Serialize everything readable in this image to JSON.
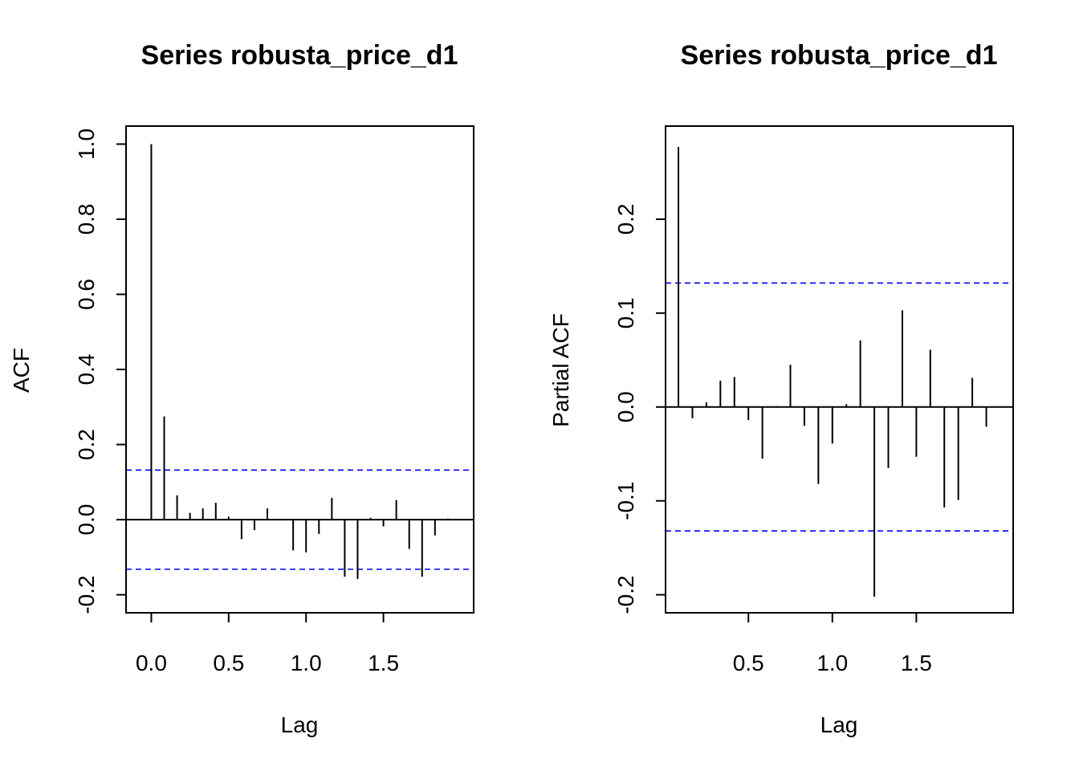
{
  "chart_data": [
    {
      "type": "bar",
      "title": "Series  robusta_price_d1",
      "xlabel": "Lag",
      "ylabel": "ACF",
      "xlim": [
        -0.08,
        2.0
      ],
      "ylim": [
        -0.2,
        1.0
      ],
      "x_ticks": [
        0.0,
        0.5,
        1.0,
        1.5
      ],
      "x_tick_labels": [
        "0.0",
        "0.5",
        "1.0",
        "1.5"
      ],
      "y_ticks": [
        -0.2,
        0.0,
        0.2,
        0.4,
        0.6,
        0.8,
        1.0
      ],
      "y_tick_labels": [
        "-0.2",
        "0.0",
        "0.2",
        "0.4",
        "0.6",
        "0.8",
        "1.0"
      ],
      "confidence_bound": 0.132,
      "confidence_color": "#0000ff",
      "bar_color": "#000000",
      "series": [
        {
          "x": [
            0.0,
            0.0833,
            0.1667,
            0.25,
            0.3333,
            0.4167,
            0.5,
            0.5833,
            0.6667,
            0.75,
            0.8333,
            0.9167,
            1.0,
            1.0833,
            1.1667,
            1.25,
            1.3333,
            1.4167,
            1.5,
            1.5833,
            1.6667,
            1.75,
            1.8333,
            1.9167
          ],
          "values": [
            1.0,
            0.275,
            0.065,
            0.018,
            0.03,
            0.045,
            0.008,
            -0.052,
            -0.028,
            0.03,
            0.002,
            -0.082,
            -0.087,
            -0.038,
            0.058,
            -0.152,
            -0.158,
            0.005,
            -0.018,
            0.052,
            -0.078,
            -0.152,
            -0.042,
            0.003
          ]
        }
      ]
    },
    {
      "type": "bar",
      "title": "Series  robusta_price_d1",
      "xlabel": "Lag",
      "ylabel": "Partial ACF",
      "xlim": [
        0.0833,
        2.0
      ],
      "ylim": [
        -0.2,
        0.28
      ],
      "x_ticks": [
        0.5,
        1.0,
        1.5
      ],
      "x_tick_labels": [
        "0.5",
        "1.0",
        "1.5"
      ],
      "y_ticks": [
        -0.2,
        -0.1,
        0.0,
        0.1,
        0.2
      ],
      "y_tick_labels": [
        "-0.2",
        "-0.1",
        "0.0",
        "0.1",
        "0.2"
      ],
      "confidence_bound": 0.132,
      "confidence_color": "#0000ff",
      "bar_color": "#000000",
      "series": [
        {
          "x": [
            0.0833,
            0.1667,
            0.25,
            0.3333,
            0.4167,
            0.5,
            0.5833,
            0.6667,
            0.75,
            0.8333,
            0.9167,
            1.0,
            1.0833,
            1.1667,
            1.25,
            1.3333,
            1.4167,
            1.5,
            1.5833,
            1.6667,
            1.75,
            1.8333,
            1.9167
          ],
          "values": [
            0.277,
            -0.012,
            0.005,
            0.028,
            0.032,
            -0.014,
            -0.055,
            0.001,
            0.045,
            -0.02,
            -0.082,
            -0.039,
            0.003,
            0.071,
            -0.202,
            -0.065,
            0.103,
            -0.053,
            0.061,
            -0.107,
            -0.099,
            0.031,
            -0.021
          ]
        }
      ]
    }
  ]
}
